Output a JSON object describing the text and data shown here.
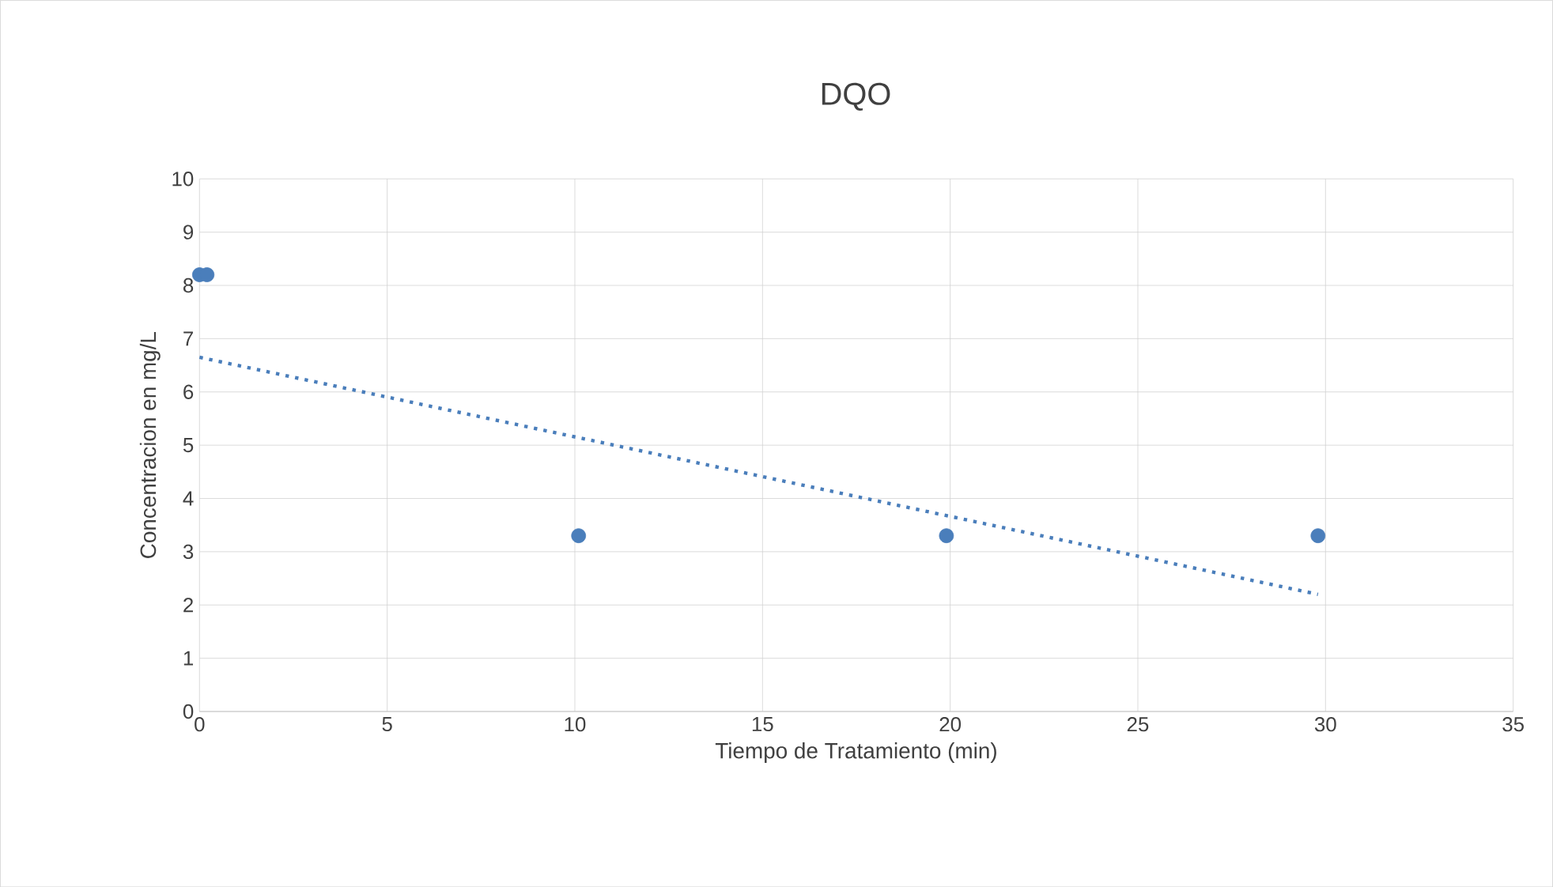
{
  "chart_data": {
    "type": "scatter",
    "title": "DQO",
    "xlabel": "Tiempo de Tratamiento (min)",
    "ylabel": "Concentracion en mg/L",
    "series": [
      {
        "color": "#4a7ebb",
        "marker": "circle",
        "x": [
          0,
          0.2,
          10.1,
          19.9,
          29.8
        ],
        "values": [
          8.2,
          8.2,
          3.3,
          3.3,
          3.3
        ]
      },
      {
        "type": "line",
        "color": "#4a7ebb",
        "line_style": "dotted",
        "marker": "none",
        "x": [
          0,
          29.8
        ],
        "values": [
          6.65,
          2.2
        ]
      }
    ],
    "xlim": [
      0,
      35
    ],
    "xticks": [
      0,
      5,
      10,
      15,
      20,
      25,
      30,
      35
    ],
    "ylim": [
      0,
      10
    ],
    "yticks": [
      0,
      1,
      2,
      3,
      4,
      5,
      6,
      7,
      8,
      9,
      10
    ],
    "grid": true
  }
}
